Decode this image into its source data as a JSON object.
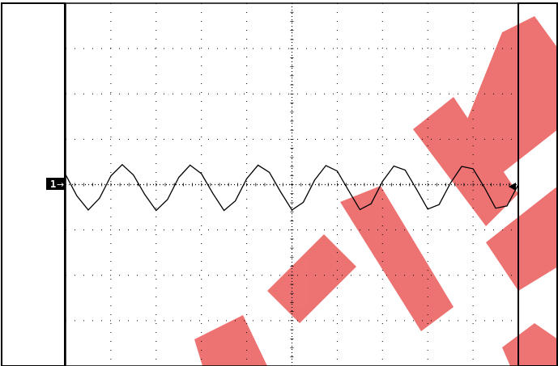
{
  "chart_data": {
    "type": "line",
    "channel_label": "1",
    "channel_color": "#000000",
    "screen_color": "#ffffff",
    "watermark_color": "#e00000",
    "grid": true,
    "grid_divisions": {
      "x": 10,
      "y": 8
    },
    "x_range": [
      0,
      10
    ],
    "y_range": [
      -4,
      4
    ],
    "series": [
      {
        "x": [
          0.0,
          0.25,
          0.5,
          0.75,
          1.0,
          1.25,
          1.5,
          1.75,
          2.0,
          2.25,
          2.5,
          2.75,
          3.0,
          3.25,
          3.5,
          3.75,
          4.0,
          4.25,
          4.5,
          4.75,
          5.0,
          5.25,
          5.5,
          5.75,
          6.0,
          6.25,
          6.5,
          6.75,
          7.0,
          7.25,
          7.5,
          7.75,
          8.0,
          8.25,
          8.5,
          8.75,
          9.0,
          9.25,
          9.5,
          9.75,
          10.0
        ],
        "y": [
          0.22,
          -0.25,
          -0.56,
          -0.3,
          0.19,
          0.44,
          0.21,
          -0.22,
          -0.57,
          -0.33,
          0.16,
          0.43,
          0.24,
          -0.19,
          -0.57,
          -0.36,
          0.13,
          0.43,
          0.27,
          -0.16,
          -0.56,
          -0.39,
          0.1,
          0.42,
          0.3,
          -0.13,
          -0.55,
          -0.42,
          0.07,
          0.41,
          0.32,
          -0.1,
          -0.54,
          -0.44,
          0.03,
          0.4,
          0.35,
          -0.06,
          -0.52,
          -0.47,
          0.0
        ]
      }
    ]
  }
}
